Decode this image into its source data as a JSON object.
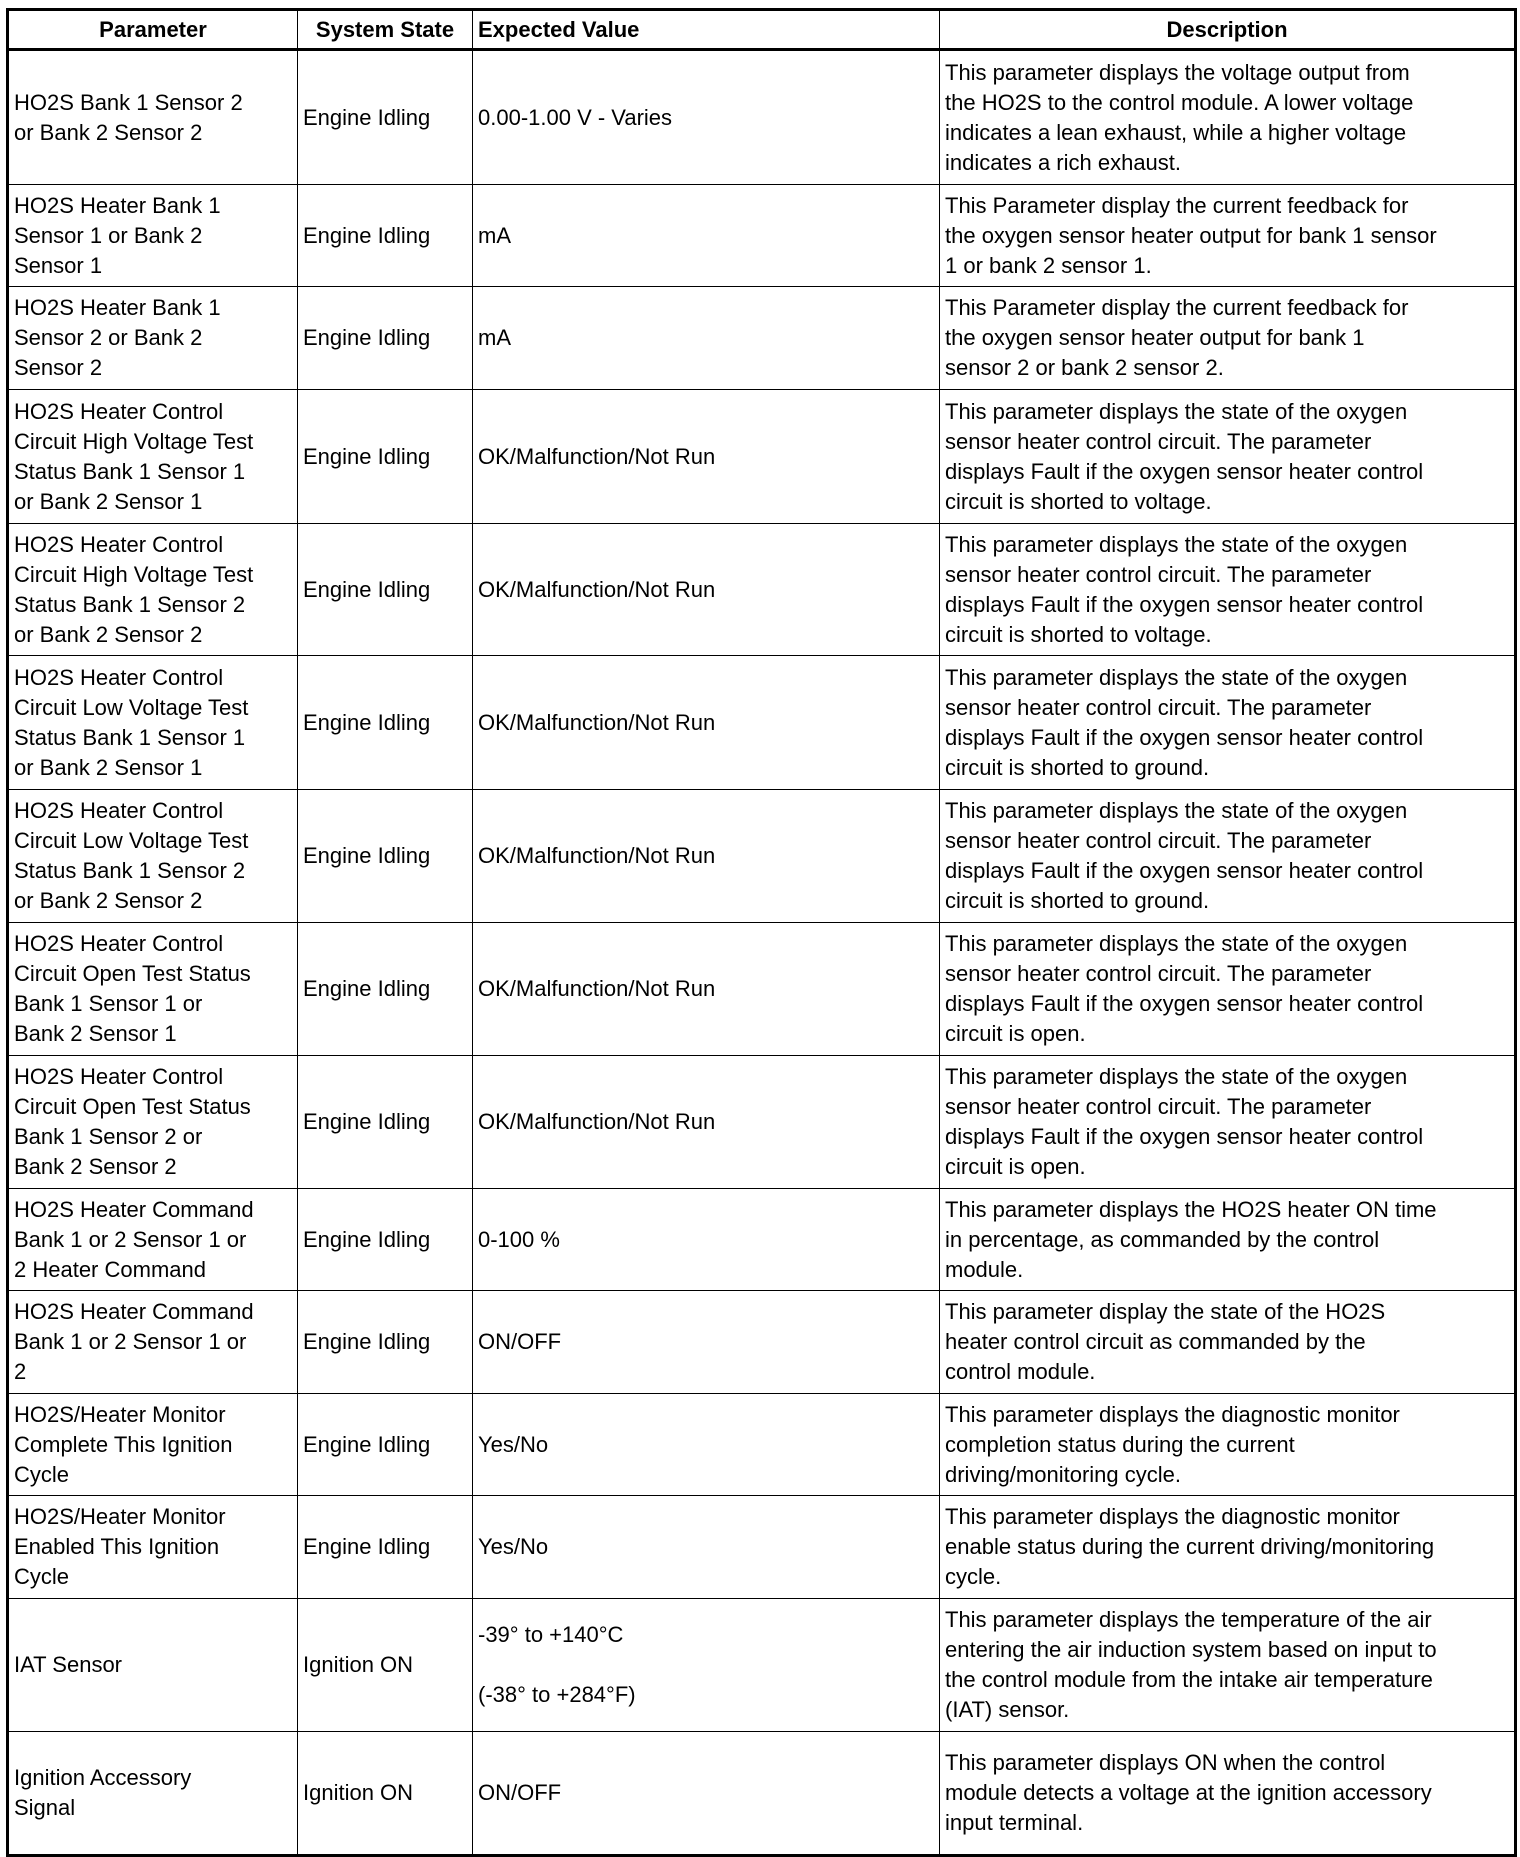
{
  "headers": [
    "Parameter",
    "System State",
    "Expected Value",
    "Description"
  ],
  "rows": [
    {
      "parameter": "HO2S Bank 1 Sensor 2\nor Bank 2 Sensor 2",
      "state": "Engine Idling",
      "expected": "0.00-1.00 V - Varies",
      "description": "This parameter displays the voltage output from\nthe HO2S to the control module. A lower voltage\nindicates a lean exhaust, while a higher voltage\nindicates a rich exhaust."
    },
    {
      "parameter": "HO2S Heater Bank 1\nSensor 1 or Bank 2\nSensor 1",
      "state": "Engine Idling",
      "expected": "mA",
      "description": "This Parameter display the current feedback for\nthe oxygen sensor heater output for bank 1 sensor\n1 or bank 2 sensor 1."
    },
    {
      "parameter": "HO2S Heater Bank 1\nSensor 2 or Bank 2\nSensor 2",
      "state": "Engine Idling",
      "expected": "mA",
      "description": "This Parameter display the current feedback for\nthe oxygen sensor heater output for bank 1\nsensor 2 or bank 2 sensor 2."
    },
    {
      "parameter": "HO2S Heater Control\nCircuit High Voltage Test\nStatus Bank 1 Sensor 1\nor Bank 2 Sensor 1",
      "state": "Engine Idling",
      "expected": "OK/Malfunction/Not Run",
      "description": "This parameter displays the state of the oxygen\nsensor heater control circuit. The parameter\ndisplays Fault if the oxygen sensor heater control\ncircuit is shorted to voltage."
    },
    {
      "parameter": "HO2S Heater Control\nCircuit High Voltage Test\nStatus Bank 1 Sensor 2\nor Bank 2 Sensor 2",
      "state": "Engine Idling",
      "expected": "OK/Malfunction/Not Run",
      "description": "This parameter displays the state of the oxygen\nsensor heater control circuit. The parameter\ndisplays Fault if the oxygen sensor heater control\ncircuit is shorted to voltage."
    },
    {
      "parameter": "HO2S Heater Control\nCircuit Low Voltage Test\nStatus Bank 1 Sensor 1\nor Bank 2 Sensor 1",
      "state": "Engine Idling",
      "expected": "OK/Malfunction/Not Run",
      "description": "This parameter displays the state of the oxygen\nsensor heater control circuit. The parameter\ndisplays Fault if the oxygen sensor heater control\ncircuit is shorted to ground."
    },
    {
      "parameter": "HO2S Heater Control\nCircuit Low Voltage Test\nStatus Bank 1 Sensor 2\nor Bank 2 Sensor 2",
      "state": "Engine Idling",
      "expected": "OK/Malfunction/Not Run",
      "description": "This parameter displays the state of the oxygen\nsensor heater control circuit. The parameter\ndisplays Fault if the oxygen sensor heater control\ncircuit is shorted to ground."
    },
    {
      "parameter": "HO2S Heater Control\nCircuit Open Test Status\nBank 1 Sensor 1 or\nBank 2 Sensor 1",
      "state": "Engine Idling",
      "expected": "OK/Malfunction/Not Run",
      "description": "This parameter displays the state of the oxygen\nsensor heater control circuit. The parameter\ndisplays Fault if the oxygen sensor heater control\ncircuit is open."
    },
    {
      "parameter": "HO2S Heater Control\nCircuit Open Test Status\nBank 1 Sensor 2 or\nBank 2 Sensor 2",
      "state": "Engine Idling",
      "expected": "OK/Malfunction/Not Run",
      "description": "This parameter displays the state of the oxygen\nsensor heater control circuit. The parameter\ndisplays Fault if the oxygen sensor heater control\ncircuit is open."
    },
    {
      "parameter": "HO2S Heater Command\nBank 1 or 2 Sensor 1 or\n2 Heater Command",
      "state": "Engine Idling",
      "expected": "0-100 %",
      "description": "This parameter displays the HO2S heater ON time\nin percentage, as commanded by the control\nmodule."
    },
    {
      "parameter": "HO2S Heater Command\nBank 1 or 2 Sensor 1 or\n2",
      "state": "Engine Idling",
      "expected": "ON/OFF",
      "description": "This parameter display the state of the HO2S\nheater control circuit as commanded by the\ncontrol module."
    },
    {
      "parameter": "HO2S/Heater Monitor\nComplete This Ignition\nCycle",
      "state": "Engine Idling",
      "expected": "Yes/No",
      "description": "This parameter displays the diagnostic monitor\ncompletion status during the current\ndriving/monitoring cycle."
    },
    {
      "parameter": "HO2S/Heater Monitor\nEnabled This Ignition\nCycle",
      "state": "Engine Idling",
      "expected": "Yes/No",
      "description": "This parameter displays the diagnostic monitor\nenable status during the current driving/monitoring\ncycle."
    },
    {
      "parameter": "IAT Sensor",
      "state": "Ignition ON",
      "expected": "-39° to +140°C\n\n(-38° to +284°F)",
      "description": "This parameter displays the temperature of the air\nentering the air induction system based on input to\nthe control module from the intake air temperature\n(IAT) sensor."
    },
    {
      "parameter": "Ignition Accessory\nSignal",
      "state": "Ignition ON",
      "expected": "ON/OFF",
      "description": "This parameter displays ON when the control\nmodule detects a voltage at the ignition accessory\ninput terminal."
    }
  ]
}
